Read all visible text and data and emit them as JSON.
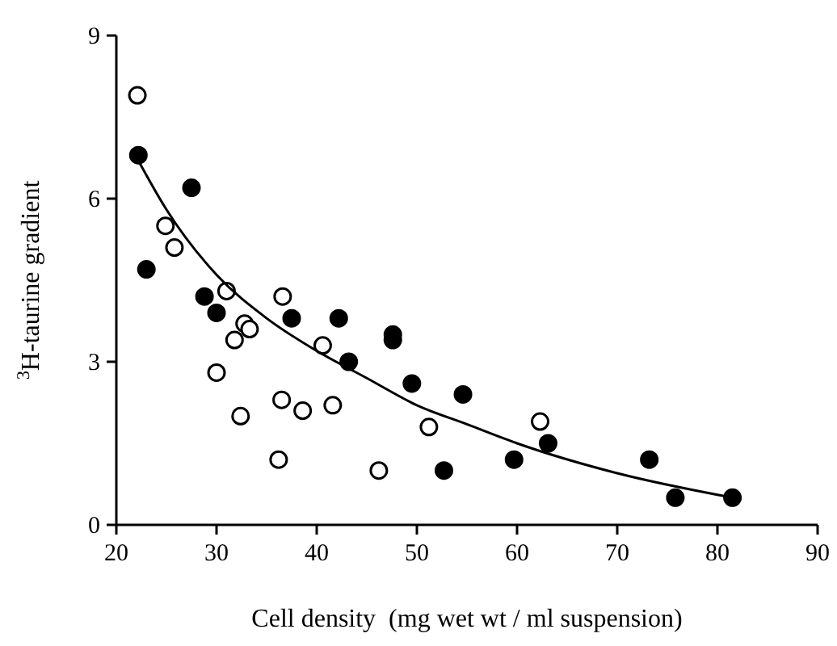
{
  "chart_data": {
    "type": "scatter",
    "xlabel": "Cell density  (mg wet wt / ml suspension)",
    "ylabel": "$^{3}$H-taurine gradient",
    "xlim": [
      20,
      90
    ],
    "ylim": [
      0,
      9
    ],
    "xticks": [
      20,
      30,
      40,
      50,
      60,
      70,
      80,
      90
    ],
    "yticks": [
      0,
      3,
      6,
      9
    ],
    "grid": false,
    "series": [
      {
        "marker": "circle",
        "color": "#000000",
        "x": [
          22.2,
          23,
          27.5,
          28.8,
          30,
          37.5,
          42.2,
          43.2,
          47.6,
          47.6,
          49.5,
          52.7,
          54.6,
          59.7,
          63.1,
          73.2,
          75.8,
          81.5
        ],
        "values": [
          6.8,
          4.7,
          6.2,
          4.2,
          3.9,
          3.8,
          3.8,
          3.0,
          3.5,
          3.4,
          2.6,
          1.0,
          2.4,
          1.2,
          1.5,
          1.2,
          0.5,
          0.5
        ]
      },
      {
        "marker": "circle",
        "color": "#ffffff",
        "x": [
          22.1,
          24.9,
          25.8,
          30,
          31,
          31.8,
          32.4,
          32.8,
          33.3,
          36.2,
          36.5,
          36.6,
          38.6,
          40.6,
          41.6,
          46.2,
          51.2,
          62.3
        ],
        "values": [
          7.9,
          5.5,
          5.1,
          2.8,
          4.3,
          3.4,
          2.0,
          3.7,
          3.6,
          1.2,
          2.3,
          4.2,
          2.1,
          3.3,
          2.2,
          1.0,
          1.8,
          1.9
        ]
      },
      {
        "type": "line",
        "marker": "none",
        "line_style": "solid",
        "color": "#000000",
        "x": [
          22.2,
          25,
          30,
          35,
          40,
          45,
          50,
          55,
          60,
          70,
          81.5
        ],
        "values": [
          6.7,
          5.8,
          4.6,
          3.8,
          3.2,
          2.7,
          2.2,
          1.85,
          1.5,
          0.95,
          0.5
        ]
      }
    ]
  }
}
